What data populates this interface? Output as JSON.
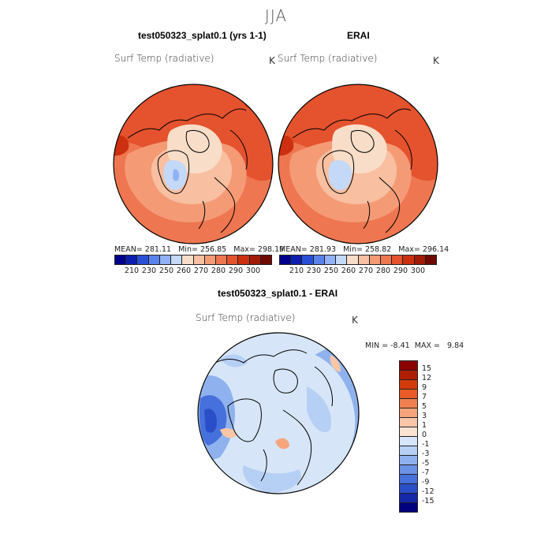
{
  "season": "JJA",
  "panels": [
    {
      "title": "test050323_splat0.1 (yrs 1-1)",
      "variable": "Surf Temp (radiative)",
      "units": "K",
      "stats": {
        "mean": "281.11",
        "min": "256.85",
        "max": "298.19"
      }
    },
    {
      "title": "ERAI",
      "variable": "Surf Temp (radiative)",
      "units": "K",
      "stats": {
        "mean": "281.93",
        "min": "258.82",
        "max": "296.14"
      }
    }
  ],
  "stat_labels": {
    "mean": "MEAN=",
    "min": "Min=",
    "max": "Max="
  },
  "field_colorbar": {
    "ticks": [
      "210",
      "230",
      "250",
      "260",
      "270",
      "280",
      "290",
      "300"
    ],
    "colors": [
      "#00008c",
      "#0c1fb0",
      "#2a4fd6",
      "#5a82ea",
      "#90b2f4",
      "#c4d8f8",
      "#f8ddc8",
      "#f8bfa0",
      "#f49b76",
      "#ee7650",
      "#e4522e",
      "#cc3010",
      "#a31a06",
      "#6e0a00"
    ]
  },
  "diff_panel": {
    "title": "test050323_splat0.1 - ERAI",
    "variable": "Surf Temp (radiative)",
    "units": "K",
    "min_label": "MIN =",
    "min_value": "-8.41",
    "max_label": "MAX =",
    "max_value": "9.84"
  },
  "diff_colorbar": {
    "ticks": [
      "15",
      "12",
      "9",
      "7",
      "5",
      "3",
      "1",
      "0",
      "-1",
      "-3",
      "-5",
      "-7",
      "-9",
      "-12",
      "-15"
    ],
    "colors": [
      "#8c0000",
      "#b01e00",
      "#d23a0a",
      "#e85a28",
      "#f08050",
      "#f6a47c",
      "#f9c6a8",
      "#fbe2d2",
      "#d6e6f8",
      "#b6cff4",
      "#8fb2ee",
      "#6a92e6",
      "#4670dc",
      "#2a4ec8",
      "#1428a8",
      "#000080"
    ]
  }
}
